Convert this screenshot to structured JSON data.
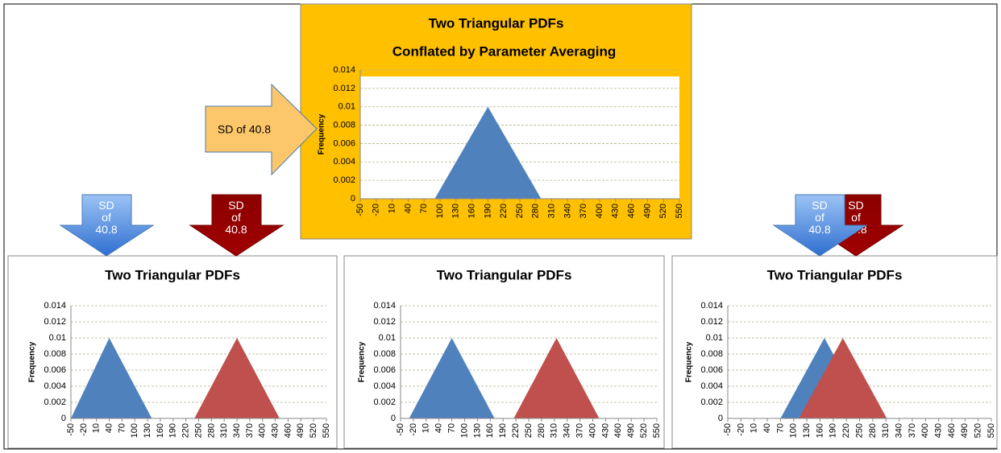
{
  "arrows": [
    "SD of 40.8",
    "SD of 40.8",
    "SD of 40.8",
    "SD of 40.8",
    "SD of 40.8"
  ],
  "chart_data": [
    {
      "type": "area",
      "title": "Two Triangular PDFs",
      "subtitle": "Conflated by Parameter Averaging",
      "ylabel": "Frequency",
      "xlim": [
        -50,
        550
      ],
      "xticks": [
        -50,
        -20,
        10,
        40,
        70,
        100,
        130,
        160,
        190,
        220,
        250,
        280,
        310,
        340,
        370,
        400,
        430,
        460,
        490,
        520,
        550
      ],
      "ylim": [
        0,
        0.014
      ],
      "yticks": [
        0,
        0.002,
        0.004,
        0.006,
        0.008,
        0.01,
        0.012,
        0.014
      ],
      "grid": true,
      "background": "#ffc000",
      "series": [
        {
          "color": "#4f81bd",
          "x": [
            90,
            190,
            290
          ],
          "values": [
            0,
            0.01,
            0
          ]
        }
      ]
    },
    {
      "type": "area",
      "title": "Two Triangular PDFs",
      "ylabel": "Frequency",
      "xlim": [
        -50,
        550
      ],
      "xticks": [
        -50,
        -20,
        10,
        40,
        70,
        100,
        130,
        160,
        190,
        220,
        250,
        280,
        310,
        340,
        370,
        400,
        430,
        460,
        490,
        520,
        550
      ],
      "ylim": [
        0,
        0.014
      ],
      "yticks": [
        0,
        0.002,
        0.004,
        0.006,
        0.008,
        0.01,
        0.012,
        0.014
      ],
      "grid": true,
      "background": "#ffffff",
      "series": [
        {
          "color": "#4f81bd",
          "x": [
            -50,
            40,
            140
          ],
          "values": [
            0,
            0.01,
            0
          ]
        },
        {
          "color": "#c0504d",
          "x": [
            240,
            340,
            440
          ],
          "values": [
            0,
            0.01,
            0
          ]
        }
      ]
    },
    {
      "type": "area",
      "title": "Two Triangular PDFs",
      "ylabel": "Frequency",
      "xlim": [
        -50,
        550
      ],
      "xticks": [
        -50,
        -20,
        10,
        40,
        70,
        100,
        130,
        160,
        190,
        220,
        250,
        280,
        310,
        340,
        370,
        400,
        430,
        460,
        490,
        520,
        550
      ],
      "ylim": [
        0,
        0.014
      ],
      "yticks": [
        0,
        0.002,
        0.004,
        0.006,
        0.008,
        0.01,
        0.012,
        0.014
      ],
      "grid": true,
      "background": "#ffffff",
      "series": [
        {
          "color": "#4f81bd",
          "x": [
            -30,
            70,
            170
          ],
          "values": [
            0,
            0.01,
            0
          ]
        },
        {
          "color": "#c0504d",
          "x": [
            215,
            315,
            415
          ],
          "values": [
            0,
            0.01,
            0
          ]
        }
      ]
    },
    {
      "type": "area",
      "title": "Two Triangular PDFs",
      "ylabel": "Frequency",
      "xlim": [
        -50,
        550
      ],
      "xticks": [
        -50,
        -20,
        10,
        40,
        70,
        100,
        130,
        160,
        190,
        220,
        250,
        280,
        310,
        340,
        370,
        400,
        430,
        460,
        490,
        520,
        550
      ],
      "ylim": [
        0,
        0.014
      ],
      "yticks": [
        0,
        0.002,
        0.004,
        0.006,
        0.008,
        0.01,
        0.012,
        0.014
      ],
      "grid": true,
      "background": "#ffffff",
      "series": [
        {
          "color": "#4f81bd",
          "x": [
            70,
            170,
            270
          ],
          "values": [
            0,
            0.01,
            0
          ]
        },
        {
          "color": "#c0504d",
          "x": [
            112,
            212,
            312
          ],
          "values": [
            0,
            0.01,
            0
          ]
        }
      ]
    }
  ]
}
